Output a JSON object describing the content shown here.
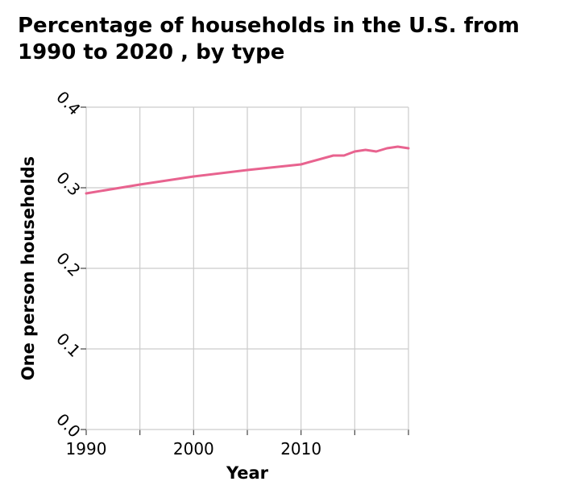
{
  "chart_data": {
    "type": "line",
    "title": "Percentage of households in the U.S. from 1990 to 2020 , by type",
    "xlabel": "Year",
    "ylabel": "One person households",
    "x_ticks": [
      "1990",
      "2000",
      "2010"
    ],
    "y_ticks": [
      "0.0",
      "0.1",
      "0.2",
      "0.3",
      "0.4"
    ],
    "xlim": [
      1990,
      2020
    ],
    "ylim": [
      0,
      0.4
    ],
    "grid": true,
    "line_color": "#e8638f",
    "series": [
      {
        "x": [
          1990,
          1995,
          2000,
          2005,
          2010,
          2013,
          2014,
          2015,
          2016,
          2017,
          2018,
          2019,
          2020
        ],
        "values": [
          0.293,
          0.304,
          0.314,
          0.322,
          0.329,
          0.34,
          0.34,
          0.345,
          0.347,
          0.345,
          0.349,
          0.351,
          0.349
        ]
      }
    ]
  }
}
